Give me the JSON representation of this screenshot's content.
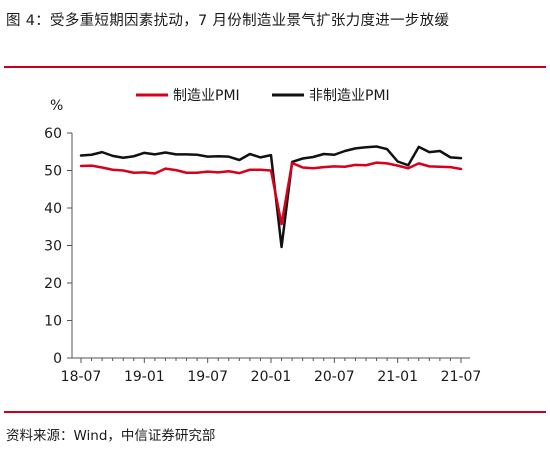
{
  "title": "图 4：受多重短期因素扰动，7 月份制造业景气扩张力度进一步放缓",
  "source": "资料来源：Wind，中信证券研究部",
  "chart_data": {
    "type": "line",
    "ylabel": "%",
    "ylim": [
      0,
      60
    ],
    "yticks": [
      0,
      10,
      20,
      30,
      40,
      50,
      60
    ],
    "x_tick_labels": [
      "18-07",
      "19-01",
      "19-07",
      "20-01",
      "20-07",
      "21-01",
      "21-07"
    ],
    "x": [
      "18-07",
      "18-08",
      "18-09",
      "18-10",
      "18-11",
      "18-12",
      "19-01",
      "19-02",
      "19-03",
      "19-04",
      "19-05",
      "19-06",
      "19-07",
      "19-08",
      "19-09",
      "19-10",
      "19-11",
      "19-12",
      "20-01",
      "20-02",
      "20-03",
      "20-04",
      "20-05",
      "20-06",
      "20-07",
      "20-08",
      "20-09",
      "20-10",
      "20-11",
      "20-12",
      "21-01",
      "21-02",
      "21-03",
      "21-04",
      "21-05",
      "21-06",
      "21-07"
    ],
    "legend_position": "top",
    "grid": false,
    "series": [
      {
        "name": "制造业PMI",
        "color": "#d9001b",
        "values": [
          51.2,
          51.3,
          50.8,
          50.2,
          50.0,
          49.4,
          49.5,
          49.2,
          50.5,
          50.1,
          49.4,
          49.4,
          49.7,
          49.5,
          49.8,
          49.3,
          50.2,
          50.2,
          50.0,
          35.7,
          52.0,
          50.8,
          50.6,
          50.9,
          51.1,
          51.0,
          51.5,
          51.4,
          52.1,
          51.9,
          51.3,
          50.6,
          51.9,
          51.1,
          51.0,
          50.9,
          50.4
        ]
      },
      {
        "name": "非制造业PMI",
        "color": "#111111",
        "values": [
          54.0,
          54.2,
          54.9,
          53.9,
          53.4,
          53.8,
          54.7,
          54.3,
          54.8,
          54.3,
          54.3,
          54.2,
          53.7,
          53.8,
          53.7,
          52.8,
          54.4,
          53.5,
          54.1,
          29.6,
          52.3,
          53.2,
          53.6,
          54.4,
          54.2,
          55.2,
          55.9,
          56.2,
          56.4,
          55.7,
          52.4,
          51.4,
          56.3,
          54.9,
          55.2,
          53.5,
          53.3
        ]
      }
    ]
  }
}
